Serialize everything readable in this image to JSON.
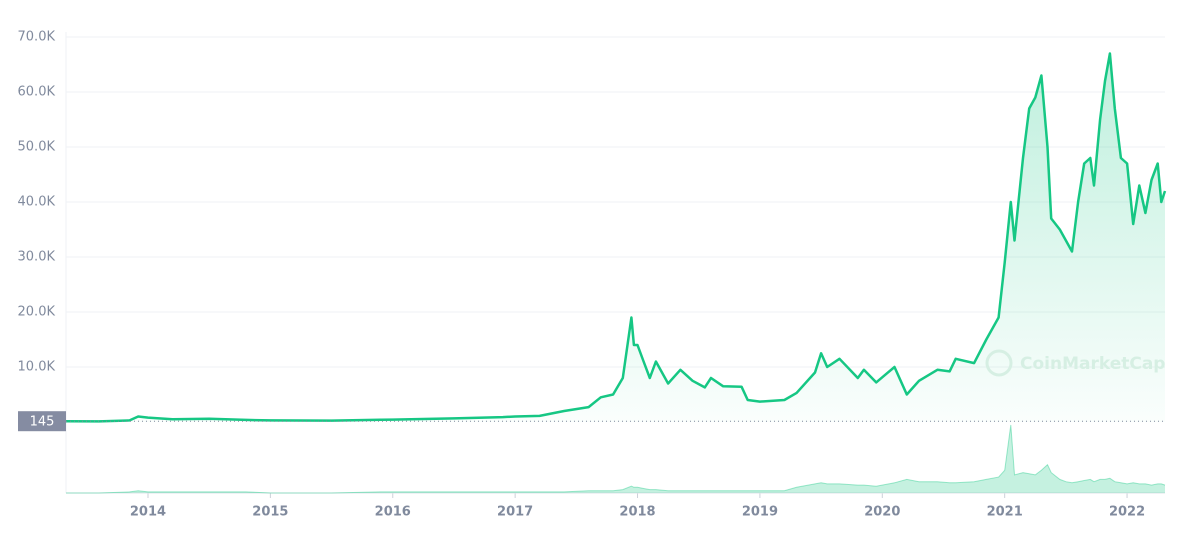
{
  "chart_data": {
    "type": "line",
    "watermark": "CoinMarketCap",
    "x": [
      2013.33,
      2013.6,
      2013.85,
      2013.92,
      2014.0,
      2014.2,
      2014.5,
      2014.8,
      2015.0,
      2015.5,
      2015.9,
      2016.0,
      2016.5,
      2016.9,
      2017.0,
      2017.2,
      2017.4,
      2017.6,
      2017.7,
      2017.8,
      2017.88,
      2017.95,
      2017.97,
      2018.0,
      2018.05,
      2018.1,
      2018.15,
      2018.25,
      2018.35,
      2018.45,
      2018.55,
      2018.6,
      2018.7,
      2018.85,
      2018.9,
      2019.0,
      2019.2,
      2019.3,
      2019.45,
      2019.5,
      2019.55,
      2019.65,
      2019.8,
      2019.85,
      2019.95,
      2020.1,
      2020.2,
      2020.3,
      2020.45,
      2020.55,
      2020.6,
      2020.75,
      2020.85,
      2020.95,
      2021.0,
      2021.05,
      2021.08,
      2021.15,
      2021.2,
      2021.25,
      2021.3,
      2021.35,
      2021.38,
      2021.45,
      2021.5,
      2021.55,
      2021.6,
      2021.65,
      2021.7,
      2021.73,
      2021.78,
      2021.82,
      2021.86,
      2021.9,
      2021.95,
      2022.0,
      2022.05,
      2022.1,
      2022.15,
      2022.2,
      2022.25,
      2022.28,
      2022.31
    ],
    "series": [
      {
        "color": "#16c784",
        "values": [
          145,
          110,
          300,
          1000,
          800,
          500,
          600,
          380,
          300,
          250,
          400,
          430,
          650,
          900,
          1000,
          1100,
          2000,
          2700,
          4500,
          5000,
          8000,
          19000,
          14000,
          14000,
          11000,
          8000,
          11000,
          7000,
          9500,
          7500,
          6300,
          8000,
          6500,
          6400,
          4000,
          3700,
          4000,
          5300,
          9000,
          12500,
          10000,
          11500,
          8000,
          9500,
          7200,
          10000,
          5000,
          7500,
          9500,
          9200,
          11500,
          10700,
          15000,
          19000,
          29000,
          40000,
          33000,
          48000,
          57000,
          59000,
          63000,
          50000,
          37000,
          35000,
          33000,
          31000,
          40000,
          47000,
          48000,
          43000,
          55000,
          62000,
          67000,
          57000,
          48000,
          47000,
          36000,
          43000,
          38000,
          44000,
          47000,
          40000,
          42000
        ]
      },
      {
        "color": "#16c784",
        "axis": "y2",
        "values": [
          0,
          0,
          1,
          2,
          1,
          1,
          1,
          1,
          0,
          0,
          1,
          1,
          1,
          1,
          1,
          1,
          1,
          2,
          2,
          2,
          3,
          6,
          5,
          5,
          4,
          3,
          3,
          2,
          2,
          2,
          2,
          2,
          2,
          2,
          2,
          2,
          2,
          5,
          8,
          9,
          8,
          8,
          7,
          7,
          6,
          9,
          12,
          10,
          10,
          9,
          9,
          10,
          12,
          14,
          20,
          60,
          16,
          18,
          17,
          16,
          20,
          25,
          18,
          12,
          10,
          9,
          10,
          11,
          12,
          10,
          12,
          12,
          13,
          10,
          9,
          8,
          9,
          8,
          8,
          7,
          8,
          8,
          7
        ]
      }
    ],
    "xlim": [
      2013.33,
      2022.31
    ],
    "xticks": [
      2014,
      2015,
      2016,
      2017,
      2018,
      2019,
      2020,
      2021,
      2022
    ],
    "ylim": [
      0,
      70000
    ],
    "yticks": [
      {
        "value": 10000,
        "label": "10.0K"
      },
      {
        "value": 20000,
        "label": "20.0K"
      },
      {
        "value": 30000,
        "label": "30.0K"
      },
      {
        "value": 40000,
        "label": "40.0K"
      },
      {
        "value": 50000,
        "label": "50.0K"
      },
      {
        "value": 60000,
        "label": "60.0K"
      },
      {
        "value": 70000,
        "label": "70.0K"
      }
    ],
    "y2lim": [
      0,
      60
    ],
    "baseline": 145,
    "grid": true
  }
}
